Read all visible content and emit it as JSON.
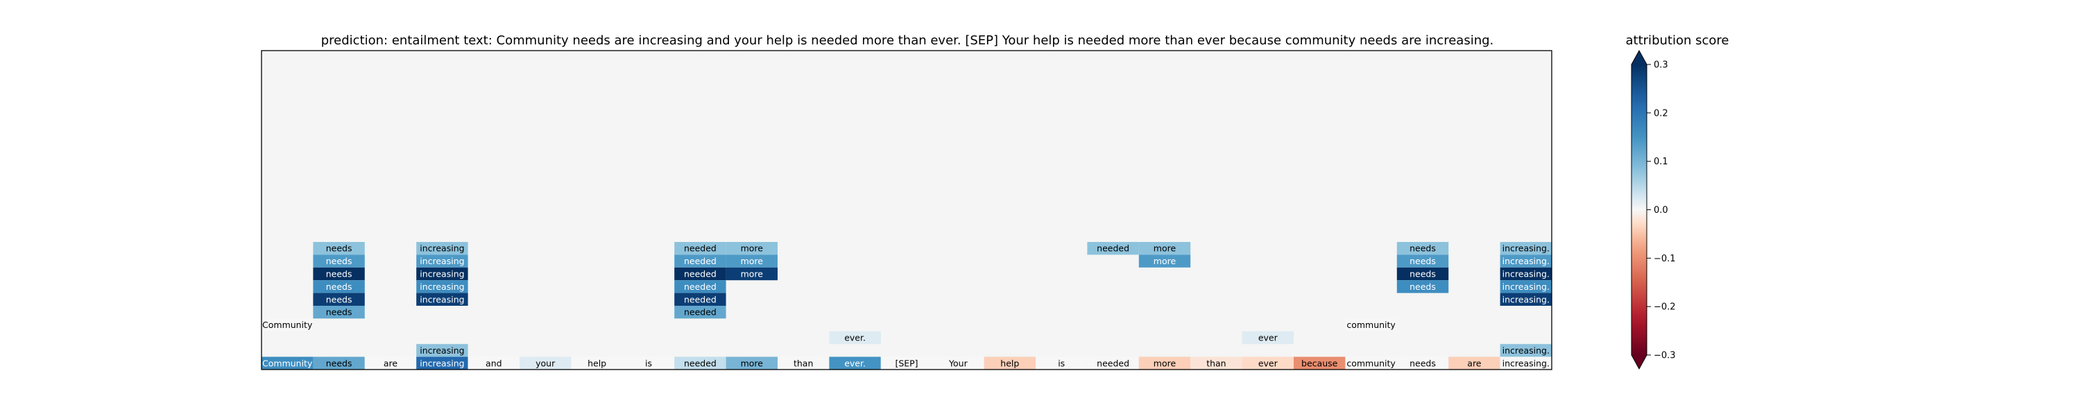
{
  "chart_data": {
    "type": "heatmap",
    "title": "prediction:  entailment     text:  Community needs are increasing and your help is needed more than ever. [SEP] Your help is needed more than ever because community needs are increasing.",
    "colorbar_label": "attribution score",
    "colorbar_ticks": [
      "0.3",
      "0.2",
      "0.1",
      "0.0",
      "−0.1",
      "−0.2",
      "−0.3"
    ],
    "colorbar_tick_values": [
      0.3,
      0.2,
      0.1,
      0.0,
      -0.1,
      -0.2,
      -0.3
    ],
    "colormap": "RdBu",
    "vmin": -0.3,
    "vmax": 0.3,
    "rows": 25,
    "columns": 25,
    "background_color": "#f4f5f4",
    "tokens": [
      "Community",
      "needs",
      "are",
      "increasing",
      "and",
      "your",
      "help",
      "is",
      "needed",
      "more",
      "than",
      "ever.",
      "[SEP]",
      "Your",
      "help",
      "is",
      "needed",
      "more",
      "than",
      "ever",
      "because",
      "community",
      "needs",
      "are",
      "increasing."
    ],
    "base_row_scores": [
      0.16,
      0.12,
      0.0,
      0.22,
      0.0,
      0.02,
      0.0,
      0.0,
      0.04,
      0.1,
      0.0,
      0.15,
      0.0,
      0.0,
      -0.04,
      0.0,
      0.0,
      -0.04,
      -0.02,
      -0.03,
      -0.1,
      0.0,
      0.0,
      -0.04,
      0.0
    ],
    "highlights": [
      {
        "row": 15,
        "col": 1,
        "score": 0.08
      },
      {
        "row": 16,
        "col": 1,
        "score": 0.14
      },
      {
        "row": 17,
        "col": 1,
        "score": 0.3
      },
      {
        "row": 18,
        "col": 1,
        "score": 0.16
      },
      {
        "row": 19,
        "col": 1,
        "score": 0.28
      },
      {
        "row": 20,
        "col": 1,
        "score": 0.12
      },
      {
        "row": 15,
        "col": 3,
        "score": 0.08
      },
      {
        "row": 16,
        "col": 3,
        "score": 0.14
      },
      {
        "row": 17,
        "col": 3,
        "score": 0.3
      },
      {
        "row": 18,
        "col": 3,
        "score": 0.16
      },
      {
        "row": 19,
        "col": 3,
        "score": 0.28
      },
      {
        "row": 23,
        "col": 3,
        "score": 0.08
      },
      {
        "row": 15,
        "col": 8,
        "score": 0.08
      },
      {
        "row": 16,
        "col": 8,
        "score": 0.14
      },
      {
        "row": 17,
        "col": 8,
        "score": 0.3
      },
      {
        "row": 18,
        "col": 8,
        "score": 0.16
      },
      {
        "row": 19,
        "col": 8,
        "score": 0.28
      },
      {
        "row": 20,
        "col": 8,
        "score": 0.12
      },
      {
        "row": 15,
        "col": 9,
        "score": 0.08
      },
      {
        "row": 16,
        "col": 9,
        "score": 0.14
      },
      {
        "row": 17,
        "col": 9,
        "score": 0.28
      },
      {
        "row": 15,
        "col": 16,
        "score": 0.08
      },
      {
        "row": 15,
        "col": 17,
        "score": 0.08
      },
      {
        "row": 16,
        "col": 17,
        "score": 0.14
      },
      {
        "row": 15,
        "col": 22,
        "score": 0.08
      },
      {
        "row": 16,
        "col": 22,
        "score": 0.14
      },
      {
        "row": 17,
        "col": 22,
        "score": 0.3
      },
      {
        "row": 18,
        "col": 22,
        "score": 0.16
      },
      {
        "row": 15,
        "col": 24,
        "score": 0.08
      },
      {
        "row": 16,
        "col": 24,
        "score": 0.14
      },
      {
        "row": 17,
        "col": 24,
        "score": 0.3
      },
      {
        "row": 18,
        "col": 24,
        "score": 0.16
      },
      {
        "row": 19,
        "col": 24,
        "score": 0.28
      },
      {
        "row": 23,
        "col": 24,
        "score": 0.08
      },
      {
        "row": 21,
        "col": 0,
        "score": 0.0
      },
      {
        "row": 21,
        "col": 21,
        "score": 0.0
      },
      {
        "row": 22,
        "col": 11,
        "score": 0.02
      },
      {
        "row": 22,
        "col": 19,
        "score": 0.02
      }
    ]
  }
}
